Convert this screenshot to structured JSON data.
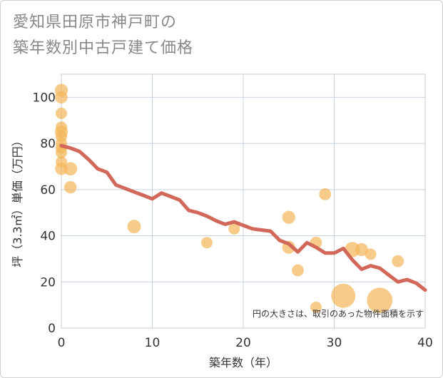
{
  "title": {
    "line1": "愛知県田原市神戸町の",
    "line2": "築年数別中古戸建て価格"
  },
  "colors": {
    "bubble": "#f3b75a",
    "line": "#d2685a",
    "grid": "#c8d3df",
    "plot_border": "#cccccc"
  },
  "chart_data": {
    "type": "scatter",
    "xlabel": "築年数（年）",
    "ylabel": "坪（3.3㎡）単価（万円）",
    "xlim": [
      0,
      40
    ],
    "ylim": [
      0,
      110
    ],
    "x_ticks": [
      0,
      10,
      20,
      30,
      40
    ],
    "y_ticks": [
      0,
      20,
      40,
      60,
      80,
      100
    ],
    "grid": true,
    "note": "円の大きさは、取引のあった物件面積を示す",
    "scatter": [
      {
        "x": 0,
        "y": 103,
        "size": 1.3
      },
      {
        "x": 0,
        "y": 100,
        "size": 1.2
      },
      {
        "x": 0,
        "y": 93,
        "size": 1.0
      },
      {
        "x": 0,
        "y": 87,
        "size": 1.0
      },
      {
        "x": 0,
        "y": 85,
        "size": 1.3
      },
      {
        "x": 0,
        "y": 83,
        "size": 1.0
      },
      {
        "x": 0,
        "y": 80,
        "size": 1.0
      },
      {
        "x": 0,
        "y": 78,
        "size": 1.0
      },
      {
        "x": 0,
        "y": 76,
        "size": 1.0
      },
      {
        "x": 0,
        "y": 72,
        "size": 1.0
      },
      {
        "x": 0,
        "y": 69,
        "size": 1.2
      },
      {
        "x": 1,
        "y": 69,
        "size": 1.4
      },
      {
        "x": 1,
        "y": 61,
        "size": 1.2
      },
      {
        "x": 8,
        "y": 44,
        "size": 1.4
      },
      {
        "x": 16,
        "y": 37,
        "size": 1.0
      },
      {
        "x": 19,
        "y": 43,
        "size": 1.0
      },
      {
        "x": 25,
        "y": 48,
        "size": 1.3
      },
      {
        "x": 25,
        "y": 35,
        "size": 1.3
      },
      {
        "x": 26,
        "y": 25,
        "size": 1.1
      },
      {
        "x": 28,
        "y": 37,
        "size": 1.1
      },
      {
        "x": 28,
        "y": 9,
        "size": 1.0
      },
      {
        "x": 29,
        "y": 58,
        "size": 1.1
      },
      {
        "x": 31,
        "y": 14,
        "size": 4.5
      },
      {
        "x": 32,
        "y": 34,
        "size": 1.8
      },
      {
        "x": 33,
        "y": 34,
        "size": 1.3
      },
      {
        "x": 34,
        "y": 32,
        "size": 1.0
      },
      {
        "x": 35,
        "y": 12,
        "size": 5.0
      },
      {
        "x": 37,
        "y": 29,
        "size": 1.1
      }
    ],
    "line": {
      "x": [
        0,
        1,
        2,
        3,
        4,
        5,
        6,
        7,
        8,
        9,
        10,
        11,
        12,
        13,
        14,
        15,
        16,
        17,
        18,
        19,
        20,
        21,
        22,
        23,
        24,
        25,
        26,
        27,
        28,
        29,
        30,
        31,
        32,
        33,
        34,
        35,
        36,
        37,
        38,
        39,
        40
      ],
      "y": [
        79,
        78,
        76.5,
        73,
        69,
        67.5,
        62,
        60.5,
        59,
        57.5,
        56,
        58.5,
        57,
        55.5,
        51,
        50,
        48.5,
        46.5,
        45,
        46,
        44.5,
        43,
        42.5,
        42,
        38,
        36.5,
        33,
        37,
        35,
        32.5,
        32.5,
        34.5,
        29.5,
        25.5,
        27,
        26,
        23,
        20,
        21,
        19.5,
        16.5
      ]
    }
  }
}
